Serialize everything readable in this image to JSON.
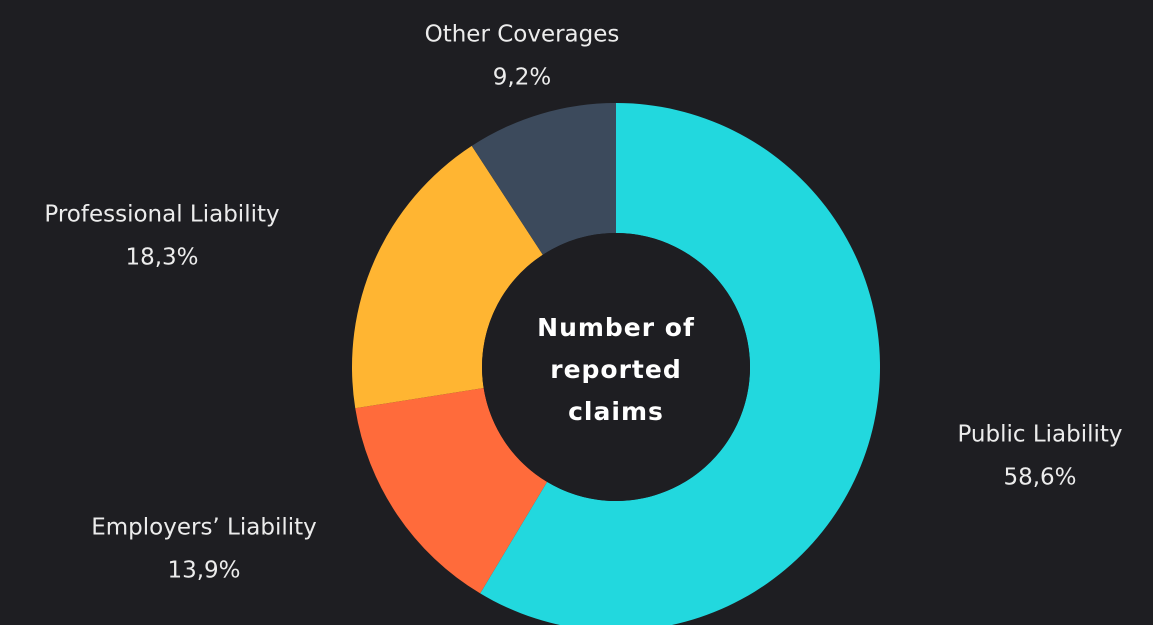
{
  "chart_data": {
    "type": "donut",
    "center_label": "Number of reported claims",
    "categories": [
      "Public Liability",
      "Employers’ Liability",
      "Professional Liability",
      "Other Coverages"
    ],
    "values": [
      58.6,
      13.9,
      18.3,
      9.2
    ],
    "value_labels": [
      "58,6%",
      "13,9%",
      "18,3%",
      "9,2%"
    ],
    "colors": [
      "#22d8de",
      "#ff6b3b",
      "#ffb532",
      "#3c4a5c"
    ]
  }
}
